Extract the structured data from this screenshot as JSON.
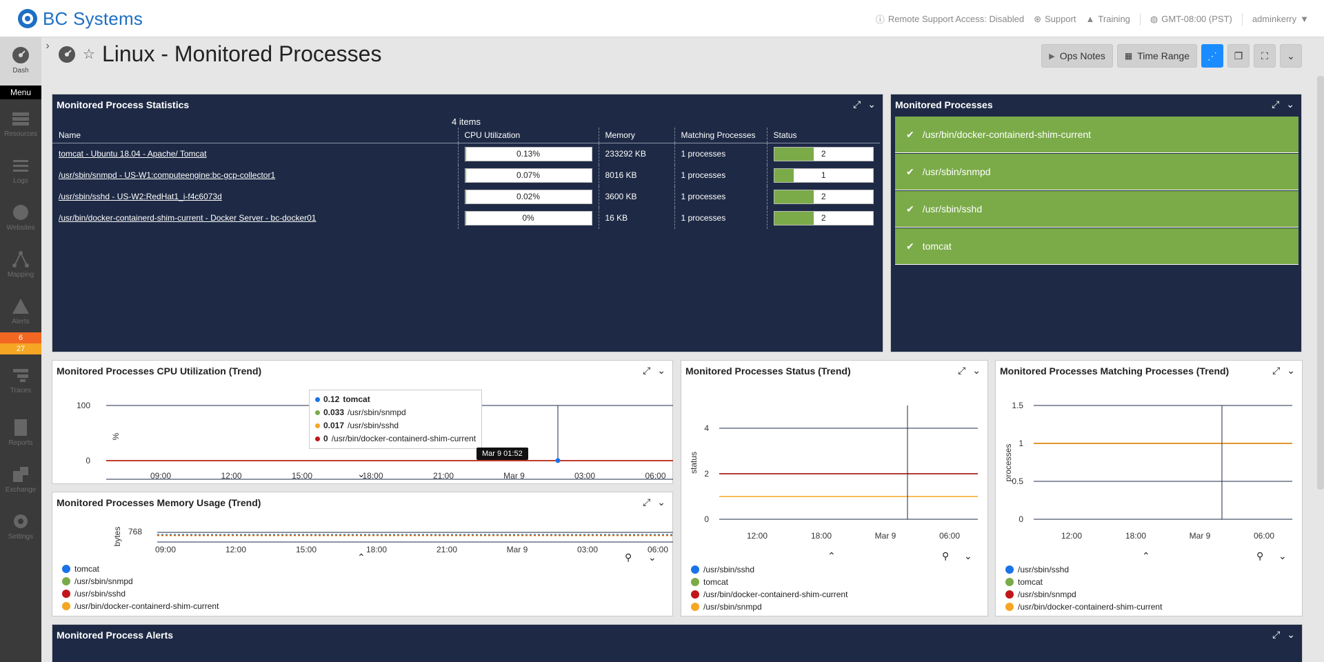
{
  "header": {
    "logo_text": "BC Systems",
    "remote_support": "Remote Support Access: Disabled",
    "support": "Support",
    "training": "Training",
    "timezone": "GMT-08:00 (PST)",
    "user": "adminkerry"
  },
  "sidebar": {
    "dash": "Dash",
    "menu": "Menu",
    "items": [
      "Resources",
      "Logs",
      "Websites",
      "Mapping",
      "Alerts",
      "Traces",
      "Reports",
      "Exchange",
      "Settings"
    ],
    "alert_badges": [
      "6",
      "27"
    ]
  },
  "page": {
    "title": "Linux - Monitored Processes",
    "ops_notes": "Ops Notes",
    "time_range": "Time Range"
  },
  "stats": {
    "title": "Monitored Process Statistics",
    "count": "4 items",
    "columns": [
      "Name",
      "CPU Utilization",
      "Memory",
      "Matching Processes",
      "Status"
    ],
    "rows": [
      {
        "name": "tomcat - Ubuntu 18.04 - Apache/ Tomcat",
        "cpu": "0.13%",
        "cpu_fill": 0.01,
        "memory": "233292 KB",
        "matching": "1 processes",
        "status": "2",
        "status_fill": 0.4
      },
      {
        "name": "/usr/sbin/snmpd - US-W1:computeengine:bc-gcp-collector1",
        "cpu": "0.07%",
        "cpu_fill": 0.007,
        "memory": "8016 KB",
        "matching": "1 processes",
        "status": "1",
        "status_fill": 0.2
      },
      {
        "name": "/usr/sbin/sshd - US-W2:RedHat1_i-f4c6073d",
        "cpu": "0.02%",
        "cpu_fill": 0.005,
        "memory": "3600 KB",
        "matching": "1 processes",
        "status": "2",
        "status_fill": 0.4
      },
      {
        "name": "/usr/bin/docker-containerd-shim-current - Docker Server - bc-docker01",
        "cpu": "0%",
        "cpu_fill": 0,
        "memory": "16 KB",
        "matching": "1 processes",
        "status": "2",
        "status_fill": 0.4
      }
    ]
  },
  "monitored": {
    "title": "Monitored Processes",
    "items": [
      "/usr/bin/docker-containerd-shim-current",
      "/usr/sbin/snmpd",
      "/usr/sbin/sshd",
      "tomcat"
    ]
  },
  "alerts_panel": {
    "title": "Monitored Process Alerts"
  },
  "colors": {
    "blue": "#1a73e8",
    "green": "#7aab48",
    "red": "#c0161a",
    "orange": "#f5a623",
    "navy": "#1e2a45"
  },
  "chart_data": [
    {
      "type": "line",
      "title": "Monitored Processes CPU Utilization (Trend)",
      "ylabel": "%",
      "x_ticks": [
        "09:00",
        "12:00",
        "15:00",
        "18:00",
        "21:00",
        "Mar 9",
        "03:00",
        "06:00"
      ],
      "y_ticks": [
        "0",
        "100"
      ],
      "ylim": [
        0,
        100
      ],
      "series": [
        {
          "name": "tomcat",
          "value": 0.12,
          "color": "#1a73e8"
        },
        {
          "name": "/usr/sbin/snmpd",
          "value": 0.033,
          "color": "#7aab48"
        },
        {
          "name": "/usr/sbin/sshd",
          "value": 0.017,
          "color": "#f5a623"
        },
        {
          "name": "/usr/bin/docker-containerd-shim-current",
          "value": 0.0,
          "color": "#c0161a"
        }
      ],
      "tooltip_time": "Mar 9 01:52"
    },
    {
      "type": "line",
      "title": "Monitored Processes Memory Usage (Trend)",
      "ylabel": "bytes",
      "x_ticks": [
        "09:00",
        "12:00",
        "15:00",
        "18:00",
        "21:00",
        "Mar 9",
        "03:00",
        "06:00"
      ],
      "y_ticks": [
        "768"
      ],
      "legend": [
        {
          "name": "tomcat",
          "color": "#1a73e8"
        },
        {
          "name": "/usr/sbin/snmpd",
          "color": "#7aab48"
        },
        {
          "name": "/usr/sbin/sshd",
          "color": "#c0161a"
        },
        {
          "name": "/usr/bin/docker-containerd-shim-current",
          "color": "#f5a623"
        }
      ]
    },
    {
      "type": "line",
      "title": "Monitored Processes Status (Trend)",
      "ylabel": "status",
      "x_ticks": [
        "12:00",
        "18:00",
        "Mar 9",
        "06:00"
      ],
      "y_ticks": [
        "0",
        "2",
        "4"
      ],
      "ylim": [
        0,
        5
      ],
      "series": [
        {
          "name": "/usr/sbin/sshd",
          "value": 2,
          "color": "#1a73e8"
        },
        {
          "name": "tomcat",
          "value": 2,
          "color": "#7aab48"
        },
        {
          "name": "/usr/bin/docker-containerd-shim-current",
          "value": 2,
          "color": "#c0161a"
        },
        {
          "name": "/usr/sbin/snmpd",
          "value": 1,
          "color": "#f5a623"
        }
      ]
    },
    {
      "type": "line",
      "title": "Monitored Processes Matching Processes (Trend)",
      "ylabel": "processes",
      "x_ticks": [
        "12:00",
        "18:00",
        "Mar 9",
        "06:00"
      ],
      "y_ticks": [
        "0",
        "0.5",
        "1",
        "1.5"
      ],
      "ylim": [
        0,
        1.5
      ],
      "series": [
        {
          "name": "/usr/sbin/sshd",
          "value": 1,
          "color": "#1a73e8"
        },
        {
          "name": "tomcat",
          "value": 1,
          "color": "#7aab48"
        },
        {
          "name": "/usr/sbin/snmpd",
          "value": 1,
          "color": "#c0161a"
        },
        {
          "name": "/usr/bin/docker-containerd-shim-current",
          "value": 1,
          "color": "#f5a623"
        }
      ]
    }
  ]
}
